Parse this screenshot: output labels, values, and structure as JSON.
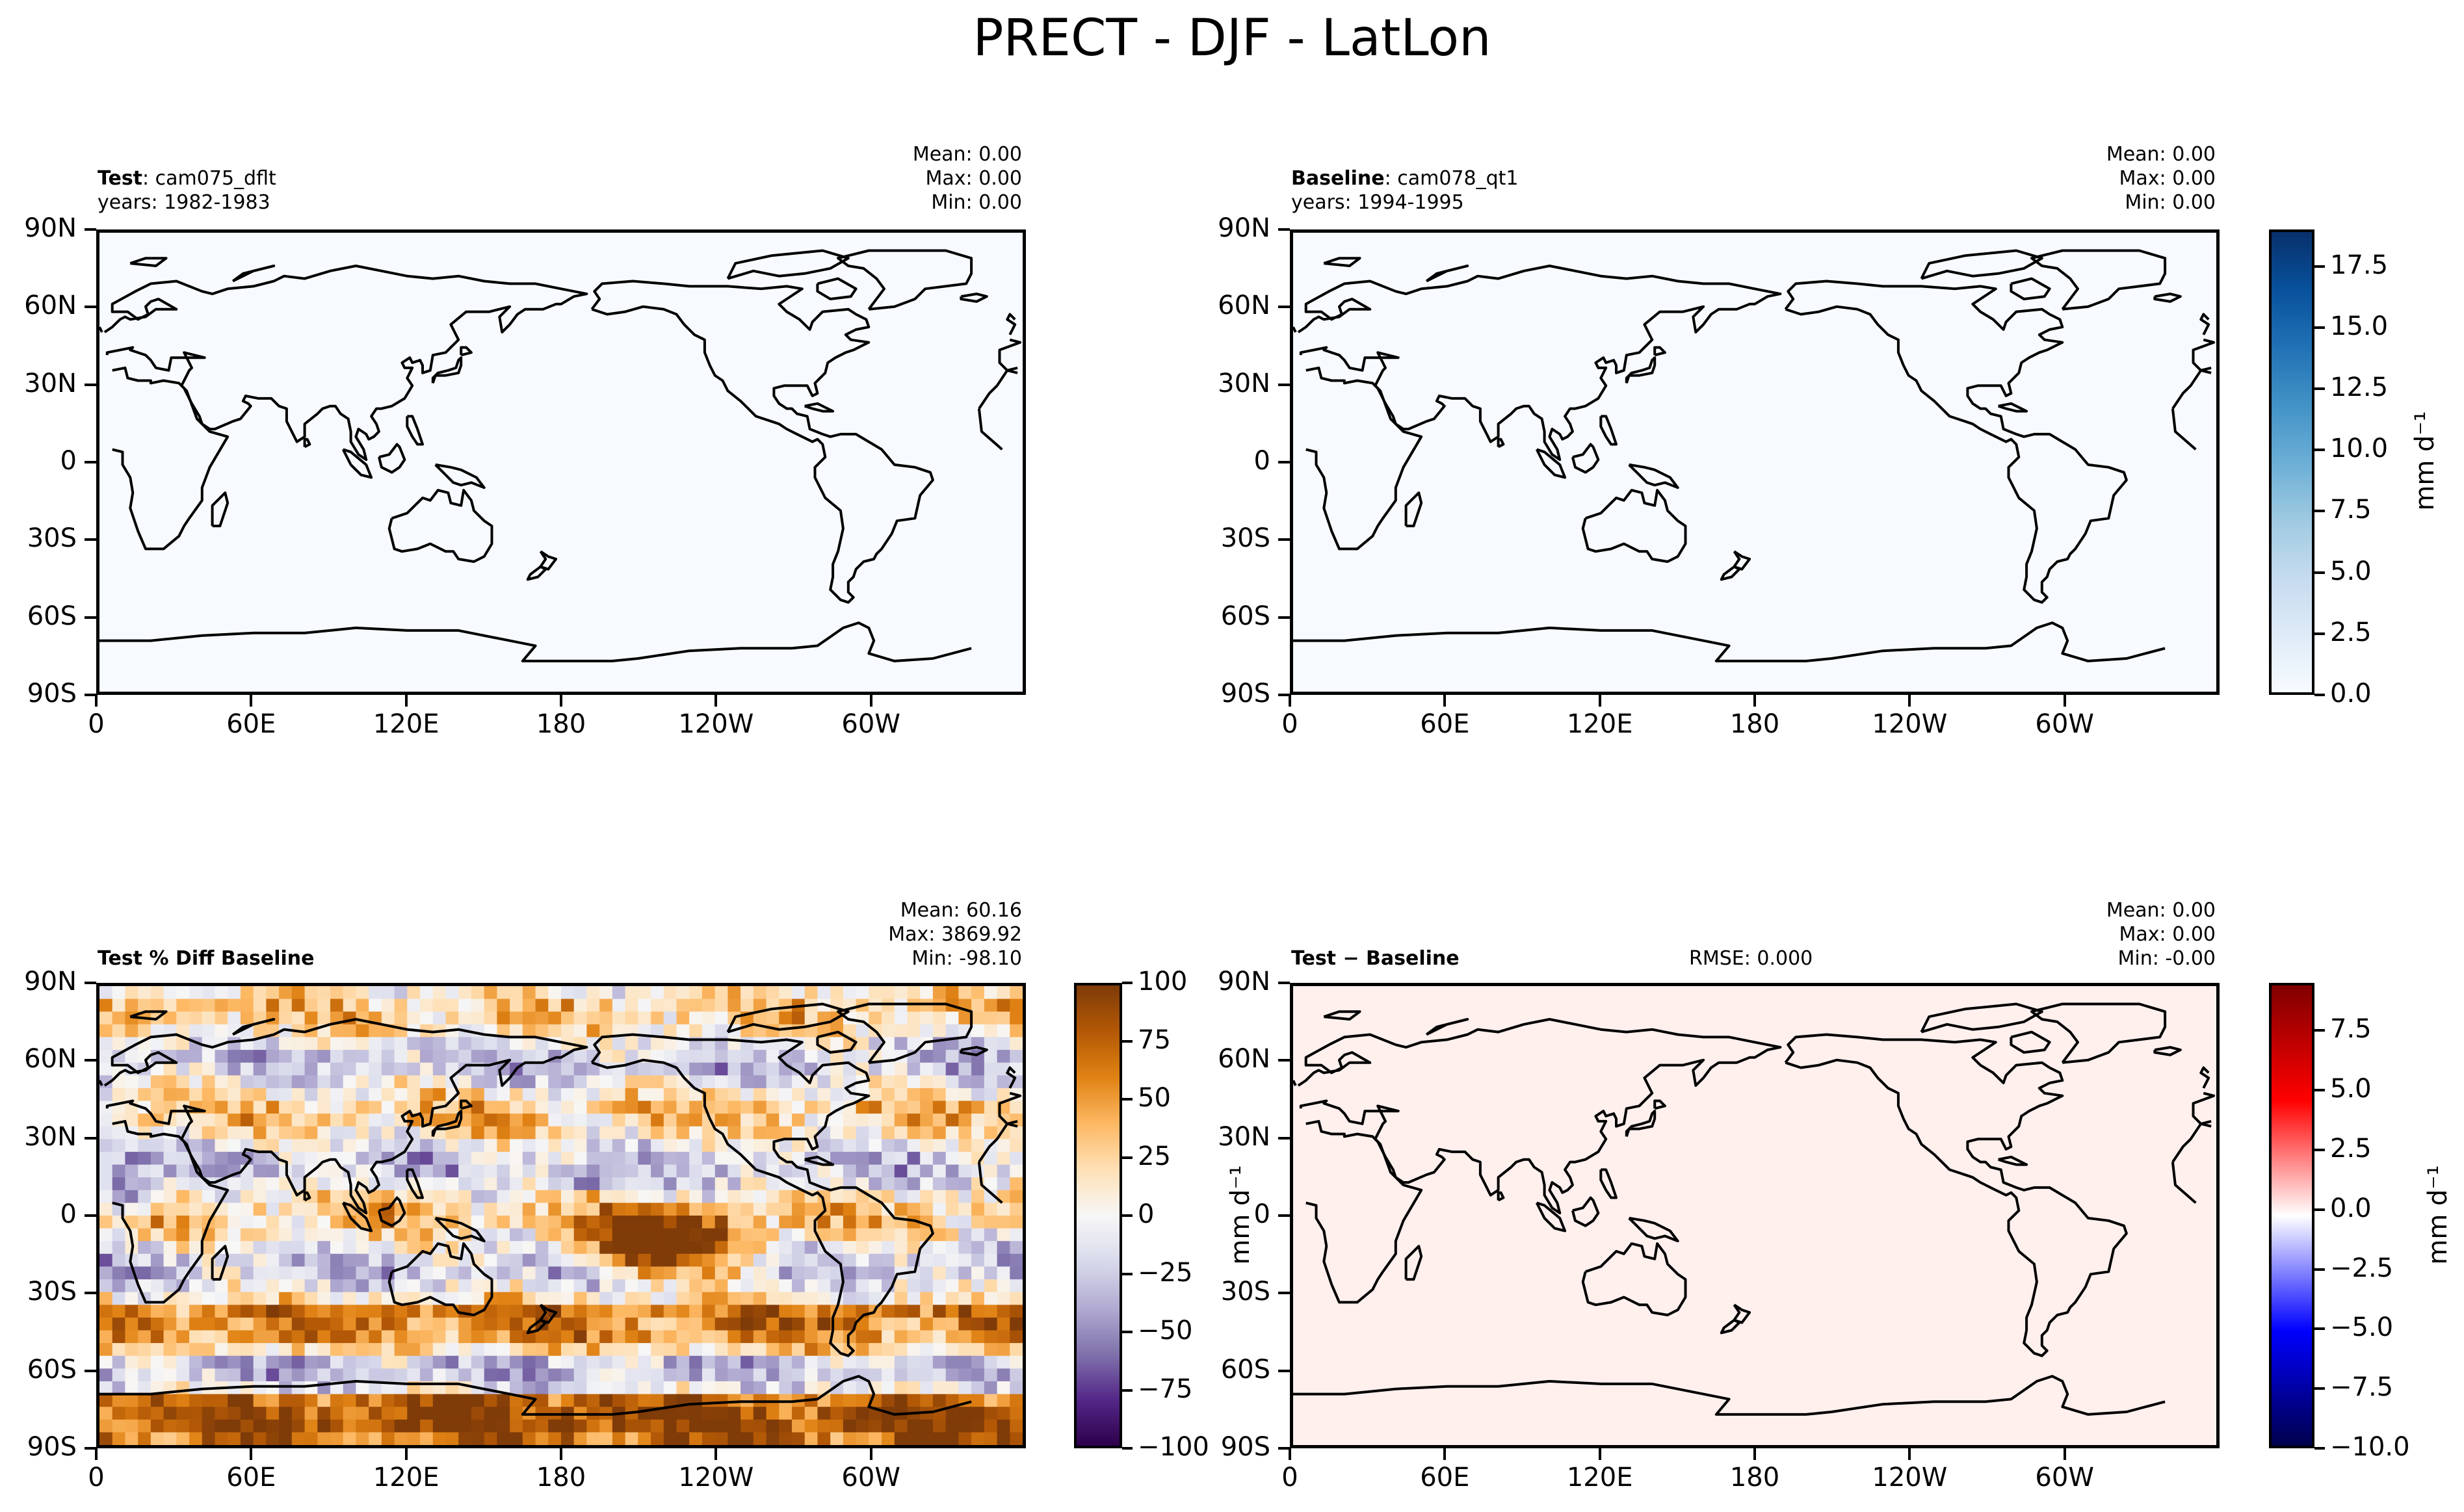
{
  "title": "PRECT - DJF - LatLon",
  "coastline_color": "#000000",
  "x_ticks": [
    "0",
    "60E",
    "120E",
    "180",
    "120W",
    "60W"
  ],
  "y_ticks": [
    "90N",
    "60N",
    "30N",
    "0",
    "30S",
    "60S",
    "90S"
  ],
  "panels": {
    "test": {
      "label_bold": "Test",
      "label_rest": ": cam075_dflt",
      "years": "years: 1982-1983",
      "mean": "Mean:  0.00",
      "max": "Max:  0.00",
      "min": "Min:  0.00",
      "fill_color": "#f7fbff"
    },
    "baseline": {
      "label_bold": "Baseline",
      "label_rest": ": cam078_qt1",
      "years": "years: 1994-1995",
      "mean": "Mean:  0.00",
      "max": "Max:  0.00",
      "min": "Min:  0.00",
      "fill_color": "#f7fbff"
    },
    "pctdiff": {
      "label_bold": "Test % Diff Baseline",
      "mean": "Mean: 60.16",
      "max": "Max: 3869.92",
      "min": "Min: -98.10"
    },
    "diff": {
      "label_bold": "Test − Baseline",
      "rmse": "RMSE: 0.000",
      "mean": "Mean:  0.00",
      "max": "Max:  0.00",
      "min": "Min: -0.00",
      "fill_color": "#fff0ee"
    }
  },
  "colorbars": {
    "precip": {
      "ticks": [
        "0.0",
        "2.5",
        "5.0",
        "7.5",
        "10.0",
        "12.5",
        "15.0",
        "17.5"
      ],
      "tick_values": [
        0,
        2.5,
        5,
        7.5,
        10,
        12.5,
        15,
        17.5
      ],
      "range": [
        0,
        19
      ],
      "label": "mm d⁻¹",
      "colors": [
        "#f7fbff",
        "#deebf7",
        "#c6dbef",
        "#9ecae1",
        "#6baed6",
        "#4292c6",
        "#2171b5",
        "#08519c",
        "#08306b"
      ]
    },
    "pctdiff": {
      "ticks": [
        "100",
        "75",
        "50",
        "25",
        "0",
        "−25",
        "−50",
        "−75",
        "−100"
      ],
      "tick_values": [
        100,
        75,
        50,
        25,
        0,
        -25,
        -50,
        -75,
        -100
      ],
      "range": [
        -100,
        100
      ],
      "label": "",
      "colors": [
        "#2d004b",
        "#542788",
        "#8073ac",
        "#b2abd2",
        "#d8daeb",
        "#f7f7f7",
        "#fee0b6",
        "#fdb863",
        "#e08214",
        "#b35806",
        "#7f3b08"
      ]
    },
    "diff": {
      "ticks": [
        "7.5",
        "5.0",
        "2.5",
        "0.0",
        "−2.5",
        "−5.0",
        "−7.5",
        "−10.0"
      ],
      "tick_values": [
        7.5,
        5,
        2.5,
        0,
        -2.5,
        -5,
        -7.5,
        -10
      ],
      "range": [
        -10,
        9.5
      ],
      "label": "mm d⁻¹",
      "colors": [
        "#00004c",
        "#0000ff",
        "#ffffff",
        "#ff0000",
        "#800000"
      ]
    }
  },
  "left_axis_label_pctdiff_right": "mm d⁻¹"
}
